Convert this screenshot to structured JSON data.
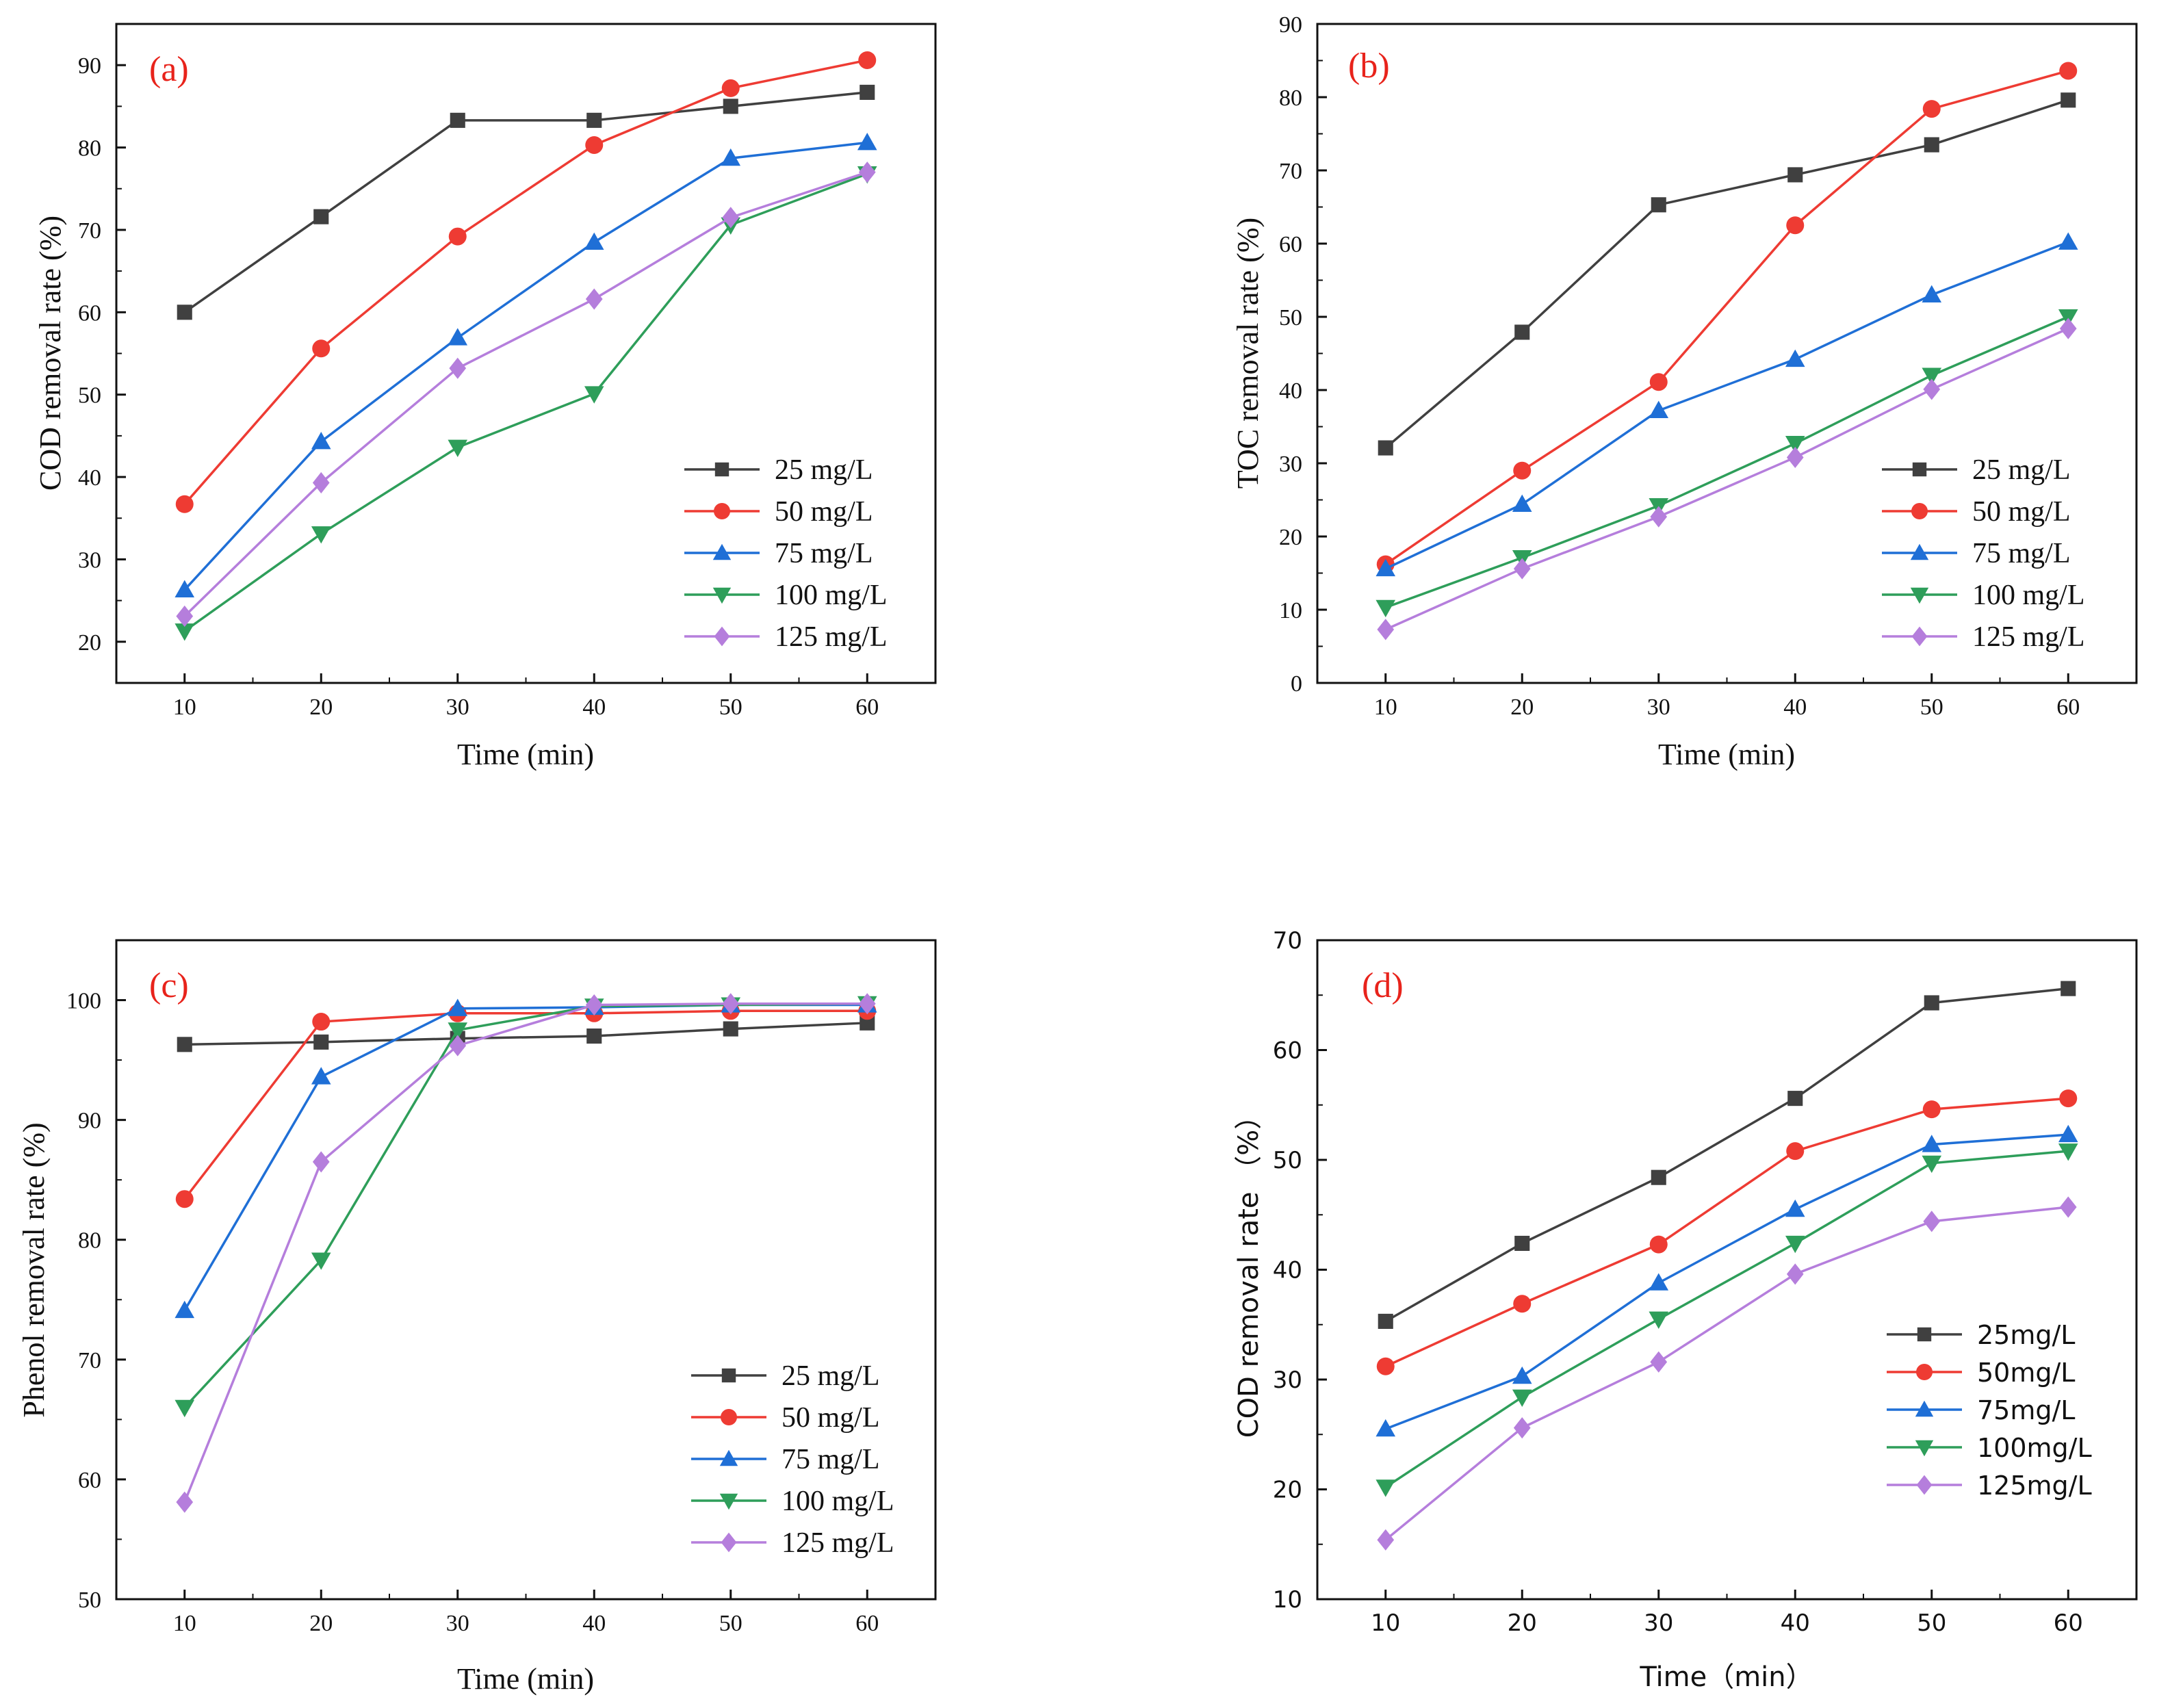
{
  "figure": {
    "description_none": ""
  },
  "chart_data": [
    {
      "type": "line",
      "panel_label": "(a)",
      "xlabel": "Time (min)",
      "ylabel": "COD removal rate (%)",
      "x": [
        10,
        20,
        30,
        40,
        50,
        60
      ],
      "xticks": [
        "10",
        "20",
        "30",
        "40",
        "50",
        "60"
      ],
      "yticks": [
        "20",
        "30",
        "40",
        "50",
        "60",
        "70",
        "80",
        "90"
      ],
      "xlim": [
        5,
        65
      ],
      "ylim": [
        15,
        95
      ],
      "series": [
        {
          "name": "25 mg/L",
          "color": "#404040",
          "marker": "square",
          "values": [
            60.0,
            71.6,
            83.3,
            83.3,
            85.0,
            86.7
          ]
        },
        {
          "name": "50 mg/L",
          "color": "#ee3b33",
          "marker": "circle",
          "values": [
            36.7,
            55.6,
            69.2,
            80.3,
            87.2,
            90.6
          ]
        },
        {
          "name": "75 mg/L",
          "color": "#1f6fd6",
          "marker": "triangle-up",
          "values": [
            26.3,
            44.3,
            56.9,
            68.5,
            78.7,
            80.6
          ]
        },
        {
          "name": "100 mg/L",
          "color": "#2e9e5a",
          "marker": "triangle-down",
          "values": [
            21.3,
            33.1,
            43.6,
            50.1,
            70.6,
            76.8
          ]
        },
        {
          "name": "125 mg/L",
          "color": "#b57edc",
          "marker": "diamond",
          "values": [
            23.1,
            39.3,
            53.2,
            61.6,
            71.5,
            77.0
          ]
        }
      ]
    },
    {
      "type": "line",
      "panel_label": "(b)",
      "xlabel": "Time (min)",
      "ylabel": "TOC removal rate (%)",
      "x": [
        10,
        20,
        30,
        40,
        50,
        60
      ],
      "xticks": [
        "10",
        "20",
        "30",
        "40",
        "50",
        "60"
      ],
      "yticks": [
        "0",
        "10",
        "20",
        "30",
        "40",
        "50",
        "60",
        "70",
        "80",
        "90"
      ],
      "xlim": [
        5,
        65
      ],
      "ylim": [
        0,
        90
      ],
      "series": [
        {
          "name": "25 mg/L",
          "color": "#404040",
          "marker": "square",
          "values": [
            32.1,
            47.9,
            65.3,
            69.4,
            73.5,
            79.6
          ]
        },
        {
          "name": "50 mg/L",
          "color": "#ee3b33",
          "marker": "circle",
          "values": [
            16.2,
            29.0,
            41.1,
            62.5,
            78.4,
            83.6
          ]
        },
        {
          "name": "75 mg/L",
          "color": "#1f6fd6",
          "marker": "triangle-up",
          "values": [
            15.6,
            24.4,
            37.2,
            44.2,
            53.0,
            60.2
          ]
        },
        {
          "name": "100 mg/L",
          "color": "#2e9e5a",
          "marker": "triangle-down",
          "values": [
            10.3,
            17.1,
            24.2,
            32.7,
            42.0,
            50.0
          ]
        },
        {
          "name": "125 mg/L",
          "color": "#b57edc",
          "marker": "diamond",
          "values": [
            7.3,
            15.6,
            22.7,
            30.8,
            40.1,
            48.4
          ]
        }
      ]
    },
    {
      "type": "line",
      "panel_label": "(c)",
      "xlabel": "Time (min)",
      "ylabel": "Phenol removal rate (%)",
      "x": [
        10,
        20,
        30,
        40,
        50,
        60
      ],
      "xticks": [
        "10",
        "20",
        "30",
        "40",
        "50",
        "60"
      ],
      "yticks": [
        "50",
        "60",
        "70",
        "80",
        "90",
        "100"
      ],
      "xlim": [
        5,
        65
      ],
      "ylim": [
        50,
        105
      ],
      "series": [
        {
          "name": "25 mg/L",
          "color": "#404040",
          "marker": "square",
          "values": [
            96.3,
            96.5,
            96.8,
            97.0,
            97.6,
            98.1
          ]
        },
        {
          "name": "50 mg/L",
          "color": "#ee3b33",
          "marker": "circle",
          "values": [
            83.4,
            98.2,
            98.9,
            98.9,
            99.1,
            99.1
          ]
        },
        {
          "name": "75 mg/L",
          "color": "#1f6fd6",
          "marker": "triangle-up",
          "values": [
            74.1,
            93.6,
            99.3,
            99.4,
            99.6,
            99.6
          ]
        },
        {
          "name": "100 mg/L",
          "color": "#2e9e5a",
          "marker": "triangle-down",
          "values": [
            66.0,
            78.3,
            97.5,
            99.5,
            99.6,
            99.7
          ]
        },
        {
          "name": "125 mg/L",
          "color": "#b57edc",
          "marker": "diamond",
          "values": [
            58.1,
            86.5,
            96.2,
            99.6,
            99.7,
            99.7
          ]
        }
      ]
    },
    {
      "type": "line",
      "panel_label": "(d)",
      "xlabel": "Time（min）",
      "ylabel": "COD removal rate （%）",
      "x": [
        10,
        20,
        30,
        40,
        50,
        60
      ],
      "xticks": [
        "10",
        "20",
        "30",
        "40",
        "50",
        "60"
      ],
      "yticks": [
        "10",
        "20",
        "30",
        "40",
        "50",
        "60",
        "70"
      ],
      "xlim": [
        5,
        65
      ],
      "ylim": [
        10,
        70
      ],
      "series": [
        {
          "name": "25mg/L",
          "color": "#404040",
          "marker": "square",
          "values": [
            35.3,
            42.4,
            48.4,
            55.6,
            64.3,
            65.6
          ]
        },
        {
          "name": "50mg/L",
          "color": "#ee3b33",
          "marker": "circle",
          "values": [
            31.2,
            36.9,
            42.3,
            50.8,
            54.6,
            55.6
          ]
        },
        {
          "name": "75mg/L",
          "color": "#1f6fd6",
          "marker": "triangle-up",
          "values": [
            25.5,
            30.3,
            38.8,
            45.5,
            51.4,
            52.3
          ]
        },
        {
          "name": "100mg/L",
          "color": "#2e9e5a",
          "marker": "triangle-down",
          "values": [
            20.2,
            28.4,
            35.5,
            42.4,
            49.7,
            50.8
          ]
        },
        {
          "name": "125mg/L",
          "color": "#b57edc",
          "marker": "diamond",
          "values": [
            15.4,
            25.6,
            31.6,
            39.6,
            44.4,
            45.7
          ]
        }
      ]
    }
  ]
}
